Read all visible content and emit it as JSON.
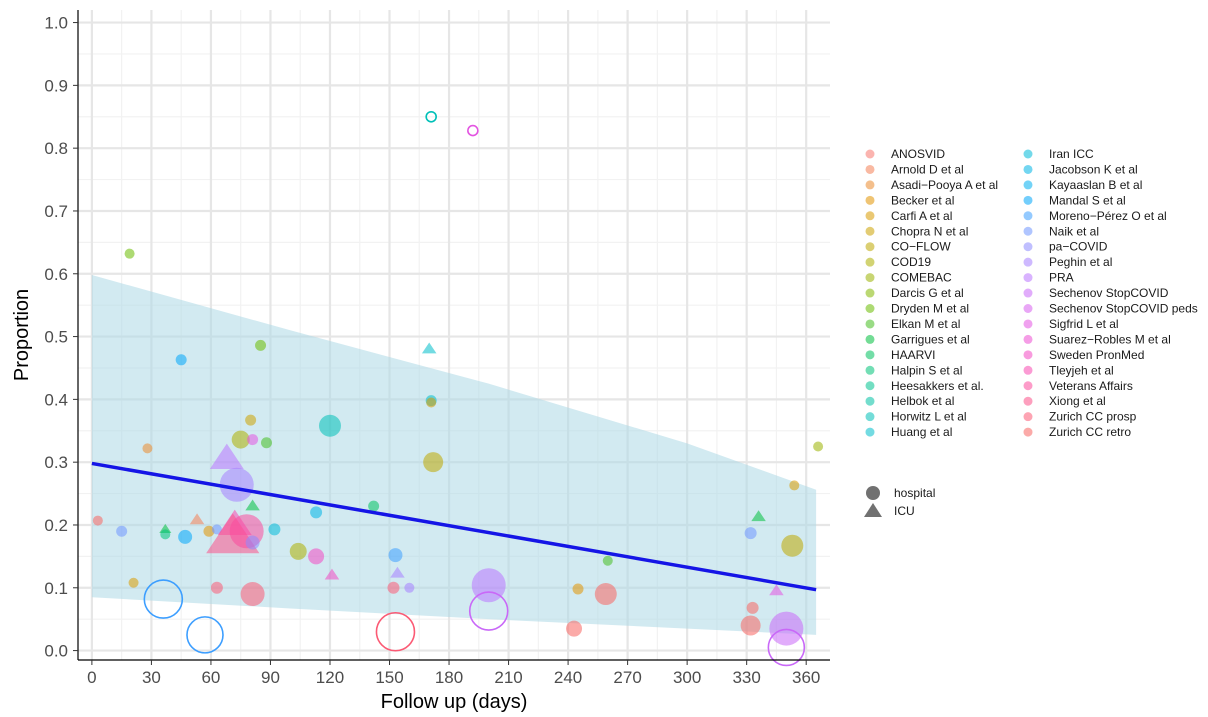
{
  "chart_data": {
    "type": "scatter",
    "xlabel": "Follow up (days)",
    "ylabel": "Proportion",
    "xlim": [
      -7,
      372
    ],
    "ylim": [
      -0.015,
      1.02
    ],
    "x_ticks": [
      0,
      30,
      60,
      90,
      120,
      150,
      180,
      210,
      240,
      270,
      300,
      330,
      360
    ],
    "y_ticks": [
      0.0,
      0.1,
      0.2,
      0.3,
      0.4,
      0.5,
      0.6,
      0.7,
      0.8,
      0.9,
      1.0
    ],
    "y_tick_labels": [
      "0.0",
      "0.1",
      "0.2",
      "0.3",
      "0.4",
      "0.5",
      "0.6",
      "0.7",
      "0.8",
      "0.9",
      "1.0"
    ],
    "grid": true,
    "legend_position": "right",
    "studies": [
      {
        "name": "ANOSVID",
        "color": "#F8766D"
      },
      {
        "name": "Arnold D et al",
        "color": "#F47F55"
      },
      {
        "name": "Asadi−Pooya A et al",
        "color": "#EB8A2E"
      },
      {
        "name": "Becker et al",
        "color": "#E29300"
      },
      {
        "name": "Carfi A et al",
        "color": "#D99B00"
      },
      {
        "name": "Chopra N et al",
        "color": "#CCA200"
      },
      {
        "name": "CO−FLOW",
        "color": "#BDA800"
      },
      {
        "name": "COD19",
        "color": "#ADAE00"
      },
      {
        "name": "COMEBAC",
        "color": "#9BB300"
      },
      {
        "name": "Darcis G et al",
        "color": "#84B800"
      },
      {
        "name": "Dryden M et al",
        "color": "#69BB00"
      },
      {
        "name": "Elkan M et al",
        "color": "#45BE20"
      },
      {
        "name": "Garrigues et al",
        "color": "#00C03E"
      },
      {
        "name": "HAARVI",
        "color": "#00C15E"
      },
      {
        "name": "Halpin S et al",
        "color": "#00C278"
      },
      {
        "name": "Heesakkers et al.",
        "color": "#00C28F"
      },
      {
        "name": "Helbok et al",
        "color": "#00C1A4"
      },
      {
        "name": "Horwitz L et al",
        "color": "#00C0B8"
      },
      {
        "name": "Huang et al",
        "color": "#00BDCA"
      },
      {
        "name": "Iran ICC",
        "color": "#00B9D9"
      },
      {
        "name": "Jacobson K et al",
        "color": "#00B4E6"
      },
      {
        "name": "Kayaaslan B et al",
        "color": "#00AEF1"
      },
      {
        "name": "Mandal S et al",
        "color": "#00A6FA"
      },
      {
        "name": "Moreno−Pérez O et al",
        "color": "#3C9EFF"
      },
      {
        "name": "Naik et al",
        "color": "#7095FF"
      },
      {
        "name": "pa−COVID",
        "color": "#8D8BFF"
      },
      {
        "name": "Peghin et al",
        "color": "#A580FF"
      },
      {
        "name": "PRA",
        "color": "#B974FF"
      },
      {
        "name": "Sechenov StopCOVID",
        "color": "#C968F8"
      },
      {
        "name": "Sechenov StopCOVID peds",
        "color": "#D75EEE"
      },
      {
        "name": "Sigfrid L et al",
        "color": "#E354E1"
      },
      {
        "name": "Suarez−Robles M et al",
        "color": "#EC4CD2"
      },
      {
        "name": "Sweden PronMed",
        "color": "#F348C2"
      },
      {
        "name": "Tleyjeh et al",
        "color": "#F848B0"
      },
      {
        "name": "Veterans Affairs",
        "color": "#FB4B9D"
      },
      {
        "name": "Xiong et al",
        "color": "#FC5189"
      },
      {
        "name": "Zurich CC prosp",
        "color": "#FB5A74"
      },
      {
        "name": "Zurich CC retro",
        "color": "#F86460"
      }
    ],
    "shape_legend": [
      {
        "label": "hospital",
        "shape": "circle"
      },
      {
        "label": "ICU",
        "shape": "triangle"
      }
    ],
    "fit_line": {
      "color": "#1515E6",
      "x": [
        0,
        365
      ],
      "y": [
        0.298,
        0.097
      ]
    },
    "band": {
      "color": "#ADD8E6",
      "x": [
        0,
        100,
        200,
        300,
        365
      ],
      "upper": [
        0.598,
        0.51,
        0.425,
        0.33,
        0.256
      ],
      "lower": [
        0.085,
        0.067,
        0.05,
        0.035,
        0.025
      ]
    },
    "points": [
      {
        "x": 3,
        "y": 0.207,
        "r": 5,
        "study": "Zurich CC retro",
        "shape": "circle",
        "filled": true
      },
      {
        "x": 15,
        "y": 0.19,
        "r": 5.5,
        "study": "Naik et al",
        "shape": "circle",
        "filled": true
      },
      {
        "x": 19,
        "y": 0.632,
        "r": 5,
        "study": "Dryden M et al",
        "shape": "circle",
        "filled": true
      },
      {
        "x": 21,
        "y": 0.108,
        "r": 5,
        "study": "Carfi A et al",
        "shape": "circle",
        "filled": true
      },
      {
        "x": 28,
        "y": 0.322,
        "r": 5,
        "study": "Asadi−Pooya A et al",
        "shape": "circle",
        "filled": true
      },
      {
        "x": 37,
        "y": 0.193,
        "r": 5,
        "study": "Garrigues et al",
        "shape": "triangle",
        "filled": true
      },
      {
        "x": 37,
        "y": 0.185,
        "r": 5,
        "study": "Halpin S et al",
        "shape": "circle",
        "filled": true
      },
      {
        "x": 36,
        "y": 0.082,
        "r": 19,
        "study": "Moreno−Pérez O et al",
        "shape": "circle",
        "filled": false
      },
      {
        "x": 45,
        "y": 0.463,
        "r": 5.5,
        "study": "Mandal S et al",
        "shape": "circle",
        "filled": true
      },
      {
        "x": 47,
        "y": 0.181,
        "r": 7,
        "study": "Mandal S et al",
        "shape": "circle",
        "filled": true
      },
      {
        "x": 53,
        "y": 0.208,
        "r": 6,
        "study": "Arnold D et al",
        "shape": "triangle",
        "filled": true
      },
      {
        "x": 59,
        "y": 0.19,
        "r": 5.5,
        "study": "Becker et al",
        "shape": "circle",
        "filled": true
      },
      {
        "x": 57,
        "y": 0.025,
        "r": 18,
        "study": "Moreno−Pérez O et al",
        "shape": "circle",
        "filled": false
      },
      {
        "x": 63,
        "y": 0.1,
        "r": 6,
        "study": "Zurich CC prosp",
        "shape": "circle",
        "filled": true
      },
      {
        "x": 63,
        "y": 0.193,
        "r": 5,
        "study": "Naik et al",
        "shape": "circle",
        "filled": true
      },
      {
        "x": 68,
        "y": 0.305,
        "r": 14,
        "study": "PRA",
        "shape": "triangle",
        "filled": true
      },
      {
        "x": 72,
        "y": 0.2,
        "r": 14,
        "study": "Tleyjeh et al",
        "shape": "triangle",
        "filled": true
      },
      {
        "x": 71,
        "y": 0.18,
        "r": 22,
        "study": "Xiong et al",
        "shape": "triangle",
        "filled": true
      },
      {
        "x": 73,
        "y": 0.264,
        "r": 17,
        "study": "Peghin et al",
        "shape": "circle",
        "filled": true
      },
      {
        "x": 75,
        "y": 0.336,
        "r": 9,
        "study": "COD19",
        "shape": "circle",
        "filled": true
      },
      {
        "x": 78,
        "y": 0.19,
        "r": 17,
        "study": "Veterans Affairs",
        "shape": "circle",
        "filled": true
      },
      {
        "x": 80,
        "y": 0.367,
        "r": 5.5,
        "study": "Chopra N et al",
        "shape": "circle",
        "filled": true
      },
      {
        "x": 81,
        "y": 0.336,
        "r": 5.5,
        "study": "Sigfrid L et al",
        "shape": "circle",
        "filled": true
      },
      {
        "x": 81,
        "y": 0.23,
        "r": 6,
        "study": "Garrigues et al",
        "shape": "triangle",
        "filled": true
      },
      {
        "x": 81,
        "y": 0.172,
        "r": 7,
        "study": "pa−COVID",
        "shape": "circle",
        "filled": true
      },
      {
        "x": 81,
        "y": 0.09,
        "r": 12,
        "study": "Zurich CC prosp",
        "shape": "circle",
        "filled": true
      },
      {
        "x": 85,
        "y": 0.486,
        "r": 5.5,
        "study": "Dryden M et al",
        "shape": "circle",
        "filled": true
      },
      {
        "x": 88,
        "y": 0.331,
        "r": 5.5,
        "study": "Elkan M et al",
        "shape": "circle",
        "filled": true
      },
      {
        "x": 92,
        "y": 0.193,
        "r": 6,
        "study": "Iran ICC",
        "shape": "circle",
        "filled": true
      },
      {
        "x": 104,
        "y": 0.158,
        "r": 8.5,
        "study": "COD19",
        "shape": "circle",
        "filled": true
      },
      {
        "x": 113,
        "y": 0.15,
        "r": 8,
        "study": "Sweden PronMed",
        "shape": "circle",
        "filled": true
      },
      {
        "x": 113,
        "y": 0.22,
        "r": 6,
        "study": "Jacobson K et al",
        "shape": "circle",
        "filled": true
      },
      {
        "x": 120,
        "y": 0.358,
        "r": 11,
        "study": "Horwitz L et al",
        "shape": "circle",
        "filled": true
      },
      {
        "x": 121,
        "y": 0.12,
        "r": 6,
        "study": "Sweden PronMed",
        "shape": "triangle",
        "filled": true
      },
      {
        "x": 142,
        "y": 0.23,
        "r": 5.5,
        "study": "HAARVI",
        "shape": "circle",
        "filled": true
      },
      {
        "x": 152,
        "y": 0.1,
        "r": 6,
        "study": "Zurich CC prosp",
        "shape": "circle",
        "filled": true
      },
      {
        "x": 153,
        "y": 0.152,
        "r": 7,
        "study": "Moreno−Pérez O et al",
        "shape": "circle",
        "filled": true
      },
      {
        "x": 154,
        "y": 0.123,
        "r": 6,
        "study": "Peghin et al",
        "shape": "triangle",
        "filled": true
      },
      {
        "x": 153,
        "y": 0.03,
        "r": 19,
        "study": "Zurich CC prosp",
        "shape": "circle",
        "filled": false
      },
      {
        "x": 160,
        "y": 0.1,
        "r": 5,
        "study": "Peghin et al",
        "shape": "circle",
        "filled": true
      },
      {
        "x": 171,
        "y": 0.85,
        "r": 5,
        "study": "Horwitz L et al",
        "shape": "circle",
        "filled": false
      },
      {
        "x": 170,
        "y": 0.48,
        "r": 6,
        "study": "Huang et al",
        "shape": "triangle",
        "filled": true
      },
      {
        "x": 171,
        "y": 0.398,
        "r": 5.5,
        "study": "Huang et al",
        "shape": "circle",
        "filled": true
      },
      {
        "x": 171,
        "y": 0.395,
        "r": 5,
        "study": "Carfi A et al",
        "shape": "circle",
        "filled": true
      },
      {
        "x": 172,
        "y": 0.3,
        "r": 10,
        "study": "CO−FLOW",
        "shape": "circle",
        "filled": true
      },
      {
        "x": 192,
        "y": 0.828,
        "r": 5,
        "study": "Sigfrid L et al",
        "shape": "circle",
        "filled": false
      },
      {
        "x": 200,
        "y": 0.104,
        "r": 17,
        "study": "PRA",
        "shape": "circle",
        "filled": true
      },
      {
        "x": 200,
        "y": 0.063,
        "r": 19,
        "study": "Sechenov StopCOVID",
        "shape": "circle",
        "filled": false
      },
      {
        "x": 243,
        "y": 0.035,
        "r": 8,
        "study": "Zurich CC retro",
        "shape": "circle",
        "filled": true
      },
      {
        "x": 245,
        "y": 0.098,
        "r": 5.5,
        "study": "Becker et al",
        "shape": "circle",
        "filled": true
      },
      {
        "x": 259,
        "y": 0.09,
        "r": 11,
        "study": "Zurich CC retro",
        "shape": "circle",
        "filled": true
      },
      {
        "x": 260,
        "y": 0.143,
        "r": 5,
        "study": "Elkan M et al",
        "shape": "circle",
        "filled": true
      },
      {
        "x": 332,
        "y": 0.187,
        "r": 6,
        "study": "Naik et al",
        "shape": "circle",
        "filled": true
      },
      {
        "x": 333,
        "y": 0.068,
        "r": 6,
        "study": "Zurich CC retro",
        "shape": "circle",
        "filled": true
      },
      {
        "x": 332,
        "y": 0.04,
        "r": 10,
        "study": "Zurich CC retro",
        "shape": "circle",
        "filled": true
      },
      {
        "x": 336,
        "y": 0.213,
        "r": 6,
        "study": "Garrigues et al",
        "shape": "triangle",
        "filled": true
      },
      {
        "x": 345,
        "y": 0.095,
        "r": 6,
        "study": "Sigfrid L et al",
        "shape": "triangle",
        "filled": true
      },
      {
        "x": 350,
        "y": 0.035,
        "r": 17,
        "study": "Sechenov StopCOVID",
        "shape": "circle",
        "filled": true
      },
      {
        "x": 350,
        "y": 0.005,
        "r": 18,
        "study": "Sechenov StopCOVID",
        "shape": "circle",
        "filled": false
      },
      {
        "x": 354,
        "y": 0.263,
        "r": 5,
        "study": "Carfi A et al",
        "shape": "circle",
        "filled": true
      },
      {
        "x": 353,
        "y": 0.167,
        "r": 11,
        "study": "CO−FLOW",
        "shape": "circle",
        "filled": true
      },
      {
        "x": 366,
        "y": 0.325,
        "r": 5,
        "study": "COMEBAC",
        "shape": "circle",
        "filled": true
      }
    ]
  }
}
